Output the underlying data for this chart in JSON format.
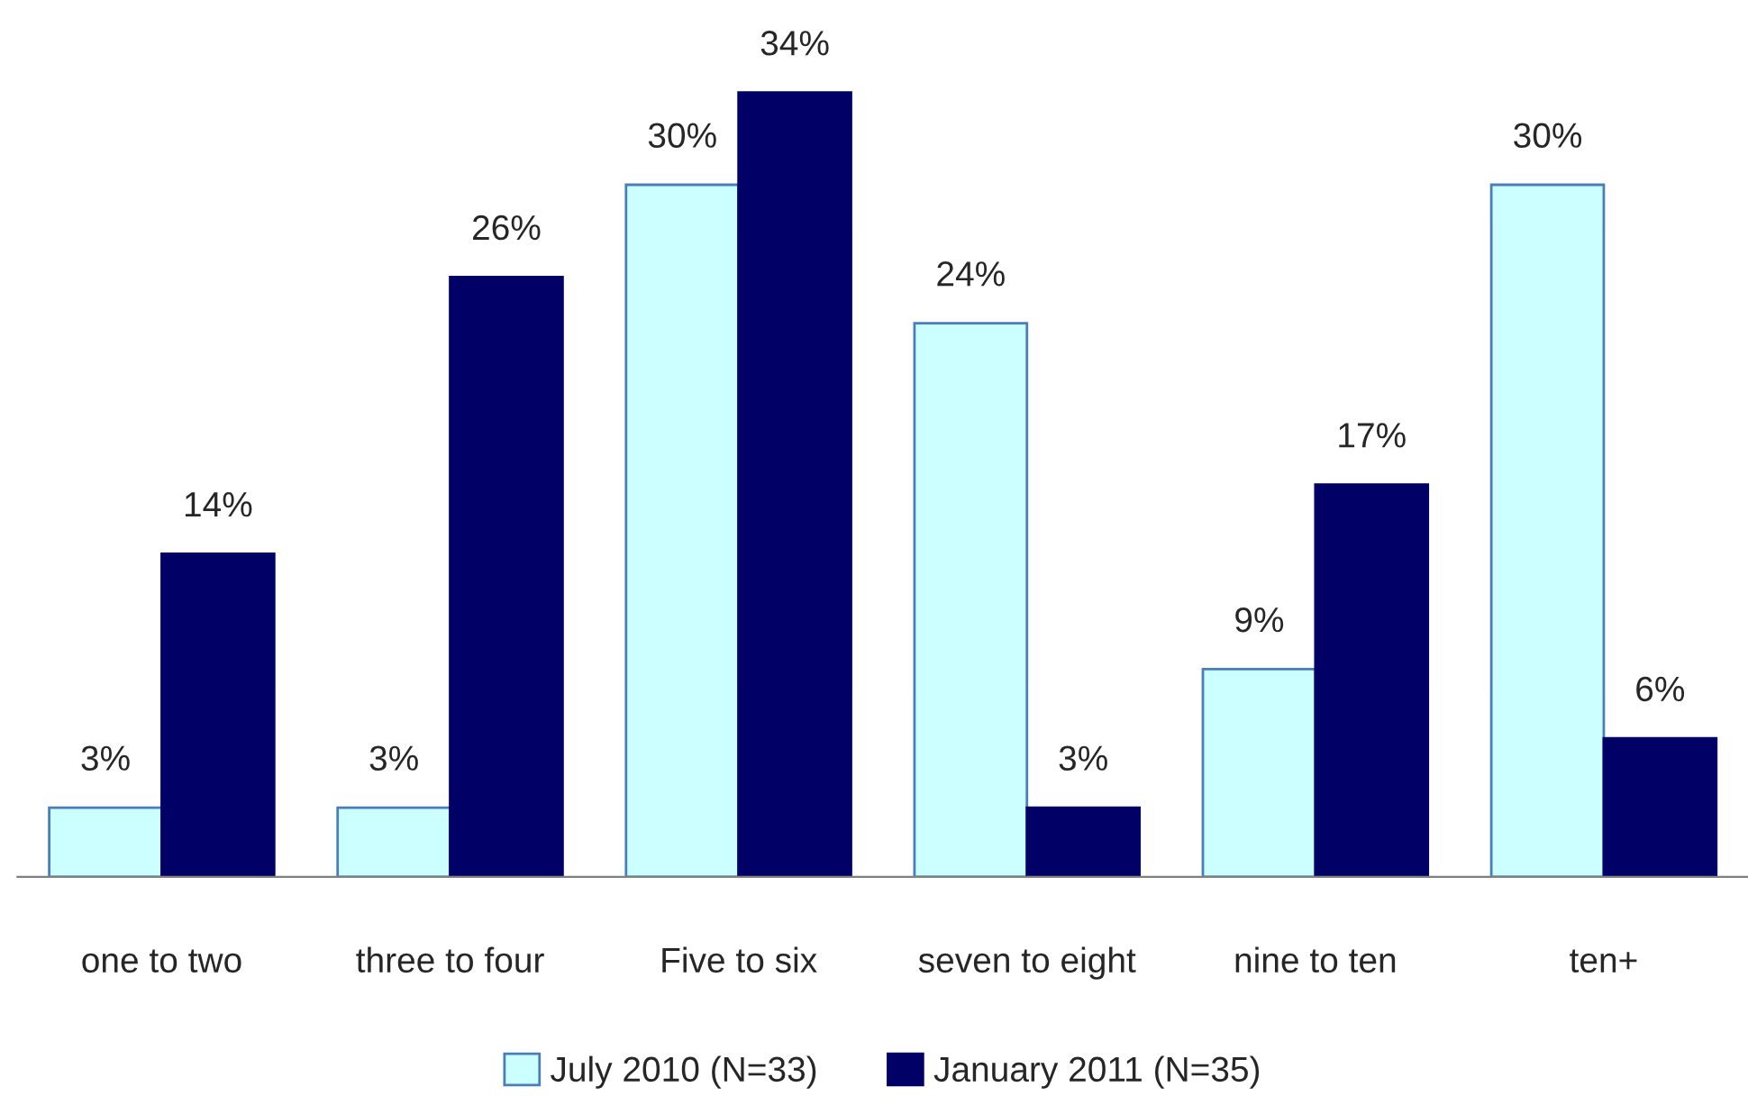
{
  "chart_data": {
    "type": "bar",
    "categories": [
      "one to two",
      "three to four",
      "Five to six",
      "seven to eight",
      "nine to ten",
      "ten+"
    ],
    "series": [
      {
        "name": "July 2010 (N=33)",
        "color": "#ccffff",
        "values": [
          3,
          3,
          30,
          24,
          9,
          30
        ],
        "value_labels": [
          "3%",
          "3%",
          "30%",
          "24%",
          "9%",
          "30%"
        ]
      },
      {
        "name": "January 2011 (N=35)",
        "color": "#000066",
        "values": [
          14,
          26,
          34,
          3,
          17,
          6
        ],
        "value_labels": [
          "14%",
          "26%",
          "34%",
          "3%",
          "17%",
          "6%"
        ]
      }
    ],
    "tick_labels": "x",
    "grid": false,
    "legend": "bottom"
  }
}
